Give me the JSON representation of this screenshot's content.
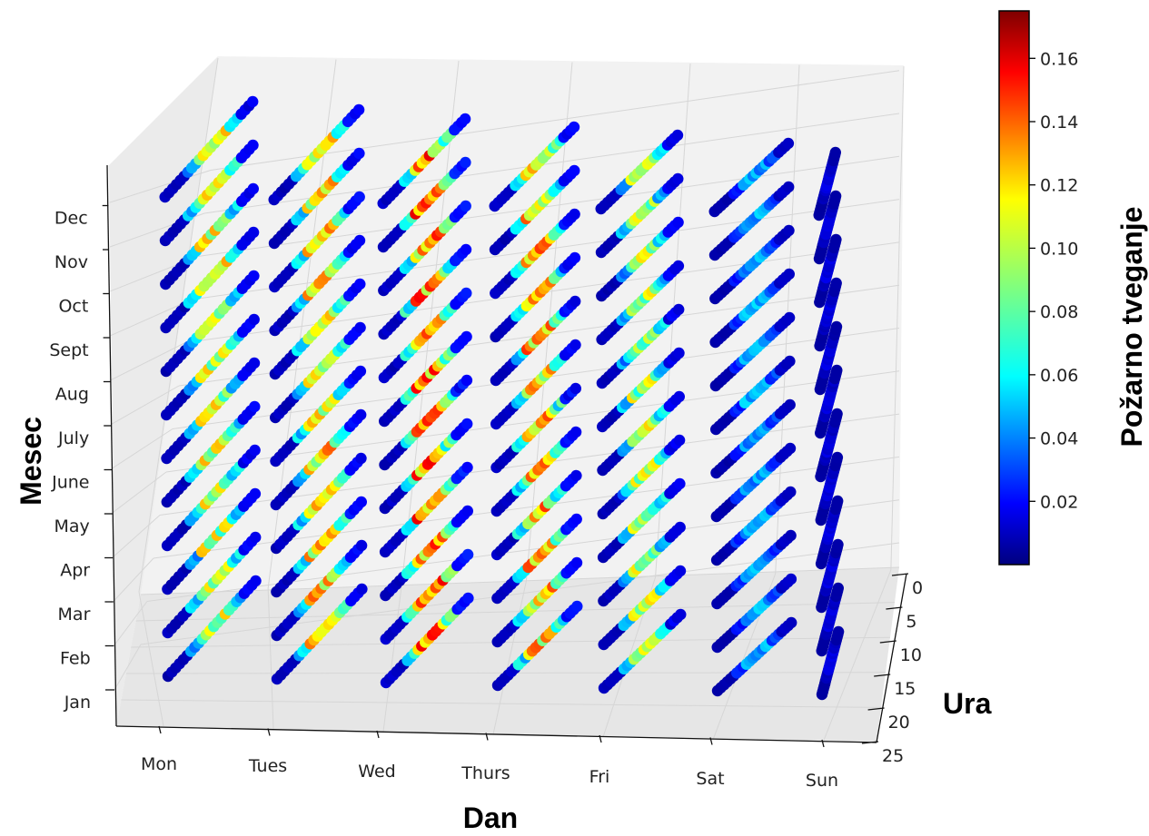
{
  "chart_data": {
    "type": "scatter",
    "projection": "3d",
    "title": "",
    "xlabel": "Dan",
    "ylabel": "Ura",
    "zlabel": "Mesec",
    "x_categories": [
      "Mon",
      "Tues",
      "Wed",
      "Thurs",
      "Fri",
      "Sat",
      "Sun"
    ],
    "y_ticks": [
      "0",
      "5",
      "10",
      "15",
      "20",
      "25"
    ],
    "ylim": [
      0,
      25
    ],
    "z_categories": [
      "Jan",
      "Feb",
      "Mar",
      "Apr",
      "May",
      "June",
      "July",
      "Aug",
      "Sept",
      "Oct",
      "Nov",
      "Dec"
    ],
    "grid": true,
    "colormap": "jet",
    "colorbar": {
      "label": "Požarno tveganje",
      "range": [
        0.0,
        0.175
      ],
      "ticks": [
        "0.02",
        "0.04",
        "0.06",
        "0.08",
        "0.10",
        "0.12",
        "0.14",
        "0.16"
      ]
    },
    "color_value": "Požarno tveganje",
    "day_risk_level": {
      "Mon": 0.085,
      "Tues": 0.095,
      "Wed": 0.11,
      "Thurs": 0.1,
      "Fri": 0.08,
      "Sat": 0.04,
      "Sun": 0.01
    },
    "hourly_pattern": "low (~0.01) at hours 0-6, rising through the day, peak around hours 10-16, low again in late evening",
    "month_rows": 12,
    "hours_per_row": 24
  }
}
